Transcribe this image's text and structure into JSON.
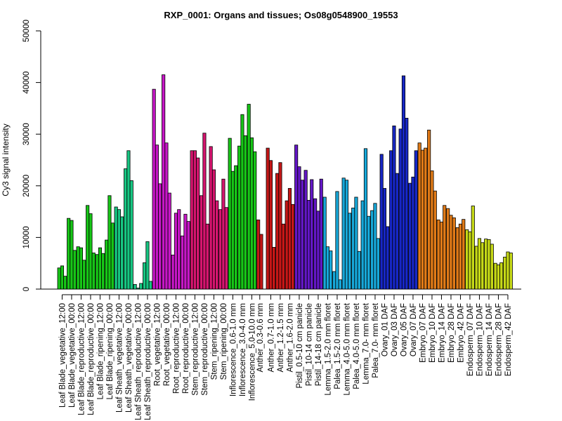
{
  "chart_data": {
    "type": "bar",
    "title": "RXP_0001: Organs and tissues; Os08g0548900_19553",
    "xlabel": "",
    "ylabel": "Cy3 signal intensity",
    "ylim": [
      0,
      50000
    ],
    "yticks": [
      0,
      10000,
      20000,
      30000,
      40000,
      50000
    ],
    "grid": false,
    "legend": "none",
    "groups": [
      {
        "label": "Leaf Blade_vegetative_12:00",
        "color": "#17c617",
        "values": [
          4100,
          4500,
          2500
        ]
      },
      {
        "label": "Leaf Blade_vegetative_00:00",
        "color": "#17c617",
        "values": [
          13700,
          13300,
          7500
        ]
      },
      {
        "label": "Leaf Blade_reproductive_12:00",
        "color": "#17c617",
        "values": [
          8200,
          8000,
          5600
        ]
      },
      {
        "label": "Leaf Blade_reproductive_00:00",
        "color": "#17c617",
        "values": [
          16200,
          14600,
          7000
        ]
      },
      {
        "label": "Leaf Blade_ripening_12:00",
        "color": "#17c617",
        "values": [
          6700,
          8000,
          6900
        ]
      },
      {
        "label": "Leaf Blade_ripening_00:00",
        "color": "#17c617",
        "values": [
          9500,
          18100,
          12800
        ]
      },
      {
        "label": "Leaf Sheath_vegetative_12:00",
        "color": "#17c682",
        "values": [
          15900,
          15400,
          14000
        ]
      },
      {
        "label": "Leaf Sheath_vegetative_00:00",
        "color": "#17c682",
        "values": [
          23300,
          26800,
          21000
        ]
      },
      {
        "label": "Leaf Sheath_reproductive_12:00",
        "color": "#17c682",
        "values": [
          900,
          200,
          1100
        ]
      },
      {
        "label": "Leaf Sheath_reproductive_00:00",
        "color": "#17c682",
        "values": [
          5100,
          9200,
          1500
        ]
      },
      {
        "label": "Root_vegetative_12:00",
        "color": "#c617c6",
        "values": [
          38700,
          27900,
          20400
        ]
      },
      {
        "label": "Root_vegetative_00:00",
        "color": "#c617c6",
        "values": [
          41500,
          28300,
          18600
        ]
      },
      {
        "label": "Root_reproductive_12:00",
        "color": "#c617c6",
        "values": [
          6600,
          14700,
          15400
        ]
      },
      {
        "label": "Root_reproductive_00:00",
        "color": "#c617c6",
        "values": [
          10300,
          14500,
          13100
        ]
      },
      {
        "label": "Stem_reproductive_12:00",
        "color": "#d6156f",
        "values": [
          26800,
          26800,
          25400
        ]
      },
      {
        "label": "Stem_reproductive_00:00",
        "color": "#d6156f",
        "values": [
          18100,
          30200,
          12600
        ]
      },
      {
        "label": "Stem_ripening_12:00",
        "color": "#d6156f",
        "values": [
          27600,
          23100,
          17100
        ]
      },
      {
        "label": "Stem_ripening_00:00",
        "color": "#d6156f",
        "values": [
          15400,
          21300,
          15800
        ]
      },
      {
        "label": "Inflorescence_0.6-1.0 mm",
        "color": "#17c617",
        "values": [
          29200,
          22800,
          23900
        ]
      },
      {
        "label": "Inflorescence_3.0-4.0 mm",
        "color": "#17c617",
        "values": [
          27700,
          33800,
          29700
        ]
      },
      {
        "label": "Inflorescence_5.0-10.0 mm",
        "color": "#17c617",
        "values": [
          35800,
          29300,
          26600
        ]
      },
      {
        "label": "Anther_0.3-0.6 mm",
        "color": "#c61717",
        "values": [
          13400,
          10600
        ]
      },
      {
        "label": "Anther_0.7-1.0 mm",
        "color": "#c61717",
        "values": [
          27300,
          24900,
          8100
        ]
      },
      {
        "label": "Anther_1.2-1.5 mm",
        "color": "#c61717",
        "values": [
          22400,
          24500,
          12600
        ]
      },
      {
        "label": "Anther_1.6-2.0 mm",
        "color": "#c61717",
        "values": [
          17100,
          19500,
          16400
        ]
      },
      {
        "label": "Pistil_0.5-10 cm panicle",
        "color": "#6317c6",
        "values": [
          27900,
          23700,
          21100
        ]
      },
      {
        "label": "Pistil_10-14 cm panicle",
        "color": "#6317c6",
        "values": [
          23000,
          17200,
          21200
        ]
      },
      {
        "label": "Pistil_14-18 cm panicle",
        "color": "#6317c6",
        "values": [
          17500,
          15100,
          21300
        ]
      },
      {
        "label": "Lemma_1.5-2.0 mm floret",
        "color": "#17a8d9",
        "values": [
          17800,
          8200,
          7400
        ]
      },
      {
        "label": "Palea_1.5-2.0 mm floret",
        "color": "#17a8d9",
        "values": [
          3400,
          18900,
          1800
        ]
      },
      {
        "label": "Lemma_4.0-5.0 mm floret",
        "color": "#17a8d9",
        "values": [
          21500,
          21100,
          14700
        ]
      },
      {
        "label": "Palea_4.0-5.0 mm floret",
        "color": "#17a8d9",
        "values": [
          15700,
          17800,
          7300
        ]
      },
      {
        "label": "Lemma_7.0- mm floret",
        "color": "#17a8d9",
        "values": [
          17100,
          27200,
          14100
        ]
      },
      {
        "label": "Palea_7.0- mm floret",
        "color": "#17a8d9",
        "values": [
          15200,
          16600,
          9800
        ]
      },
      {
        "label": "Ovary_01 DAF",
        "color": "#1727c6",
        "values": [
          26100,
          19500,
          12100
        ]
      },
      {
        "label": "Ovary_03 DAF",
        "color": "#1727c6",
        "values": [
          26800,
          31600,
          22400
        ]
      },
      {
        "label": "Ovary_05 DAF",
        "color": "#1727c6",
        "values": [
          31000,
          41300,
          33100
        ]
      },
      {
        "label": "Ovary_07 DAF",
        "color": "#1727c6",
        "values": [
          20500,
          21700,
          26800
        ]
      },
      {
        "label": "Embryo_07 DAF",
        "color": "#e07a17",
        "values": [
          28300,
          26900,
          27300
        ]
      },
      {
        "label": "Embryo_10 DAF",
        "color": "#e07a17",
        "values": [
          30800,
          22900,
          19000
        ]
      },
      {
        "label": "Embryo_14 DAF",
        "color": "#e07a17",
        "values": [
          13400,
          13000,
          16200
        ]
      },
      {
        "label": "Embryo_28 DAF",
        "color": "#e07a17",
        "values": [
          15600,
          14300,
          13800
        ]
      },
      {
        "label": "Embryo_42 DAF",
        "color": "#e07a17",
        "values": [
          11900,
          12600,
          13500
        ]
      },
      {
        "label": "Endosperm_07 DAF",
        "color": "#c6d917",
        "values": [
          11500,
          11100,
          16100
        ]
      },
      {
        "label": "Endosperm_10 DAF",
        "color": "#c6d917",
        "values": [
          8300,
          9800,
          9000
        ]
      },
      {
        "label": "Endosperm_14 DAF",
        "color": "#c6d917",
        "values": [
          9700,
          9600,
          8700
        ]
      },
      {
        "label": "Endosperm_28 DAF",
        "color": "#c6d917",
        "values": [
          5000,
          4700,
          5100
        ]
      },
      {
        "label": "Endosperm_42 DAF",
        "color": "#c6d917",
        "values": [
          6200,
          7200,
          7000
        ]
      }
    ]
  }
}
